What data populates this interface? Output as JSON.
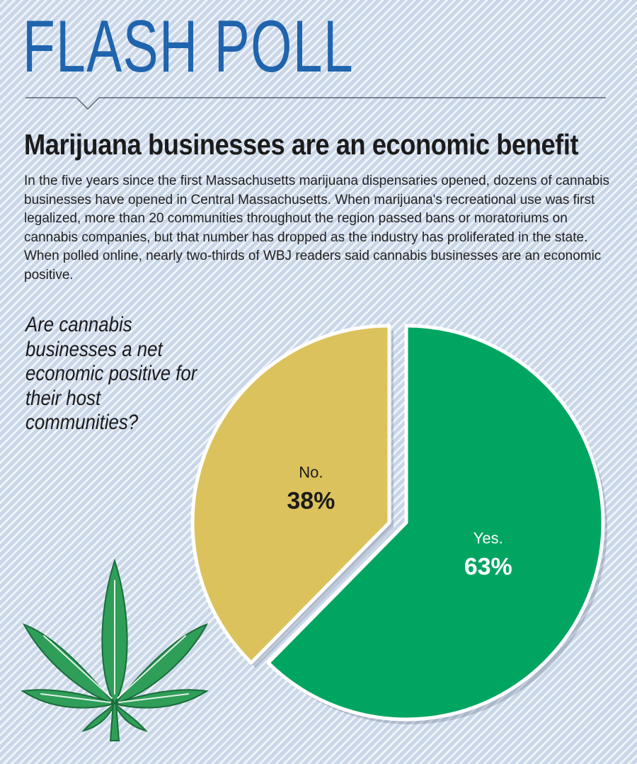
{
  "header": {
    "section_title": "FLASH POLL",
    "headline": "Marijuana businesses are an economic benefit",
    "intro": "In the five years since the first Massachusetts marijuana dispensaries opened, dozens of cannabis businesses have opened in Central Massachusetts. When marijuana's recreational use was first legalized, more than 20 communities throughout the region passed bans or moratoriums on cannabis companies, but that number has dropped as the industry has proliferated in the state. When polled online, nearly two-thirds of WBJ readers said cannabis businesses are an economic positive."
  },
  "question": "Are cannabis businesses a net economic positive for their host communities?",
  "colors": {
    "brand_blue": "#1f64ad",
    "yes_green": "#00a562",
    "no_gold": "#dcc25c",
    "leaf_green": "#2f9e58"
  },
  "decor": {
    "icon": "cannabis-leaf-icon"
  },
  "chart_data": {
    "type": "pie",
    "title": "",
    "slices": [
      {
        "label": "Yes.",
        "value": 63,
        "value_label": "63%",
        "color": "#00a562"
      },
      {
        "label": "No.",
        "value": 38,
        "value_label": "38%",
        "color": "#dcc25c"
      }
    ],
    "legend": "none"
  }
}
